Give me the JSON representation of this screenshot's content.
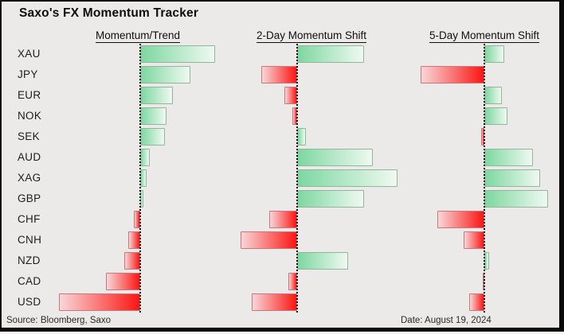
{
  "title": "Saxo's FX Momentum Tracker",
  "source_note": "Source: Bloomberg, Saxo",
  "date_note": "Date: August 19, 2024",
  "colors": {
    "background": "#ebeae8",
    "positive_dark": "#7dd7a0",
    "positive_light": "#eff9f1",
    "negative_dark": "#fb1612",
    "negative_light": "#f9d6d9",
    "frame": "#0a0a0a"
  },
  "chart_data": {
    "type": "bar",
    "orientation": "horizontal-diverging",
    "note": "No numeric axis shown; values are relative signed magnitudes estimated from bar lengths (screen px from each panel's dotted zero baseline).",
    "legend_position": "none",
    "grid": "off",
    "zero_baseline_style": "vertical dotted black line per panel",
    "categories": [
      "XAU",
      "JPY",
      "EUR",
      "NOK",
      "SEK",
      "AUD",
      "XAG",
      "GBP",
      "CHF",
      "CNH",
      "NZD",
      "CAD",
      "USD"
    ],
    "series": [
      {
        "name": "Momentum/Trend",
        "values": [
          94,
          63,
          41,
          33,
          31,
          12,
          8,
          4,
          -8,
          -15,
          -20,
          -43,
          -102
        ]
      },
      {
        "name": "2-Day Momentum Shift",
        "values": [
          84,
          -45,
          -16,
          -6,
          11,
          95,
          126,
          84,
          -35,
          -71,
          64,
          -11,
          -57
        ]
      },
      {
        "name": "5-Day Momentum Shift",
        "values": [
          25,
          -80,
          22,
          29,
          -4,
          61,
          70,
          80,
          -59,
          -26,
          6,
          -2,
          -19
        ]
      }
    ]
  }
}
